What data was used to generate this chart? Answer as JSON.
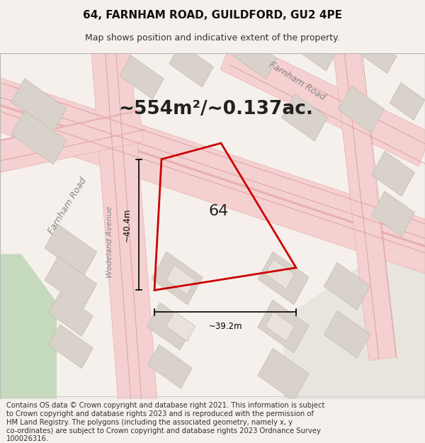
{
  "title": "64, FARNHAM ROAD, GUILDFORD, GU2 4PE",
  "subtitle": "Map shows position and indicative extent of the property.",
  "area_text": "~554m²/~0.137ac.",
  "property_number": "64",
  "dim_width": "~39.2m",
  "dim_height": "~40.4m",
  "road_label1": "Farnham Road",
  "road_label2": "Farnham Road",
  "avenue_label": "Wodeland Avenue",
  "footer_lines": [
    "Contains OS data © Crown copyright and database right 2021. This information is subject",
    "to Crown copyright and database rights 2023 and is reproduced with the permission of",
    "HM Land Registry. The polygons (including the associated geometry, namely x, y",
    "co-ordinates) are subject to Crown copyright and database rights 2023 Ordnance Survey",
    "100026316."
  ],
  "map_bg": "#f2ede8",
  "road_fill": "#f5d0d0",
  "road_edge": "#e8b0b0",
  "road_line": "#dda0a0",
  "block_color": "#d8d2ca",
  "block_edge": "#c0bab2",
  "block_light": "#e8e2da",
  "green_color": "#c5d9bc",
  "right_fill": "#e8e4de",
  "red_poly": "#cc0000",
  "title_fontsize": 11,
  "subtitle_fontsize": 9,
  "area_fontsize": 19,
  "footer_fontsize": 7.2
}
